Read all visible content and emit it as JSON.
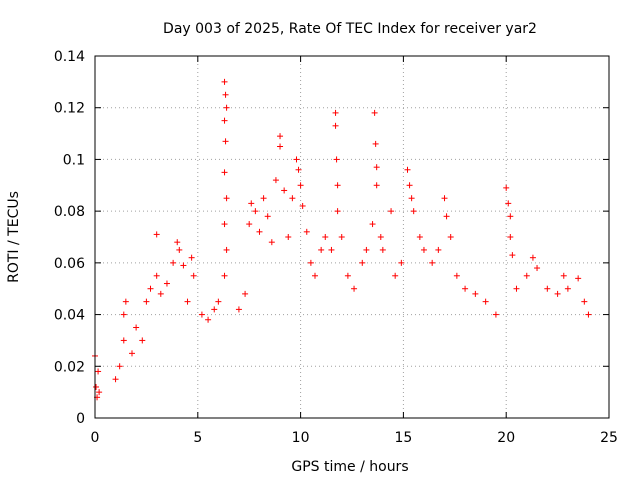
{
  "chart_data": {
    "type": "scatter",
    "title": "Day 003 of 2025, Rate Of TEC Index for receiver yar2",
    "xlabel": "GPS time / hours",
    "ylabel": "ROTI / TECUs",
    "xlim": [
      0,
      25
    ],
    "ylim": [
      0,
      0.14
    ],
    "xticks": [
      0,
      5,
      10,
      15,
      20,
      25
    ],
    "xtick_labels": [
      "0",
      "5",
      "10",
      "15",
      "20",
      "25"
    ],
    "yticks": [
      0,
      0.02,
      0.04,
      0.06,
      0.08,
      0.1,
      0.12,
      0.14
    ],
    "ytick_labels": [
      "0",
      "0.02",
      "0.04",
      "0.06",
      "0.08",
      "0.1",
      "0.12",
      "0.14"
    ],
    "grid": true,
    "marker": "plus",
    "color": "#ff0000",
    "series": [
      {
        "points": [
          [
            0.0,
            0.024
          ],
          [
            0.05,
            0.012
          ],
          [
            0.1,
            0.008
          ],
          [
            0.15,
            0.018
          ],
          [
            0.2,
            0.01
          ],
          [
            1.0,
            0.015
          ],
          [
            1.2,
            0.02
          ],
          [
            1.4,
            0.03
          ],
          [
            1.4,
            0.04
          ],
          [
            1.5,
            0.045
          ],
          [
            1.8,
            0.025
          ],
          [
            2.0,
            0.035
          ],
          [
            2.3,
            0.03
          ],
          [
            2.5,
            0.045
          ],
          [
            2.7,
            0.05
          ],
          [
            3.0,
            0.071
          ],
          [
            3.0,
            0.055
          ],
          [
            3.2,
            0.048
          ],
          [
            3.5,
            0.052
          ],
          [
            3.8,
            0.06
          ],
          [
            4.0,
            0.068
          ],
          [
            4.1,
            0.065
          ],
          [
            4.3,
            0.059
          ],
          [
            4.5,
            0.045
          ],
          [
            4.7,
            0.062
          ],
          [
            4.8,
            0.055
          ],
          [
            5.2,
            0.04
          ],
          [
            5.5,
            0.038
          ],
          [
            5.8,
            0.042
          ],
          [
            6.0,
            0.045
          ],
          [
            6.3,
            0.13
          ],
          [
            6.35,
            0.125
          ],
          [
            6.4,
            0.12
          ],
          [
            6.3,
            0.115
          ],
          [
            6.35,
            0.107
          ],
          [
            6.3,
            0.095
          ],
          [
            6.4,
            0.085
          ],
          [
            6.3,
            0.075
          ],
          [
            6.4,
            0.065
          ],
          [
            6.3,
            0.055
          ],
          [
            7.0,
            0.042
          ],
          [
            7.3,
            0.048
          ],
          [
            7.5,
            0.075
          ],
          [
            7.6,
            0.083
          ],
          [
            7.8,
            0.08
          ],
          [
            8.0,
            0.072
          ],
          [
            8.2,
            0.085
          ],
          [
            8.4,
            0.078
          ],
          [
            8.6,
            0.068
          ],
          [
            8.8,
            0.092
          ],
          [
            9.0,
            0.105
          ],
          [
            9.0,
            0.109
          ],
          [
            9.2,
            0.088
          ],
          [
            9.4,
            0.07
          ],
          [
            9.6,
            0.085
          ],
          [
            9.8,
            0.1
          ],
          [
            9.9,
            0.096
          ],
          [
            10.0,
            0.09
          ],
          [
            10.1,
            0.082
          ],
          [
            10.3,
            0.072
          ],
          [
            10.5,
            0.06
          ],
          [
            10.7,
            0.055
          ],
          [
            11.0,
            0.065
          ],
          [
            11.2,
            0.07
          ],
          [
            11.5,
            0.065
          ],
          [
            11.7,
            0.118
          ],
          [
            11.7,
            0.113
          ],
          [
            11.75,
            0.1
          ],
          [
            11.8,
            0.09
          ],
          [
            11.8,
            0.08
          ],
          [
            12.0,
            0.07
          ],
          [
            12.3,
            0.055
          ],
          [
            12.6,
            0.05
          ],
          [
            13.0,
            0.06
          ],
          [
            13.2,
            0.065
          ],
          [
            13.5,
            0.075
          ],
          [
            13.6,
            0.118
          ],
          [
            13.65,
            0.106
          ],
          [
            13.7,
            0.097
          ],
          [
            13.7,
            0.09
          ],
          [
            13.9,
            0.07
          ],
          [
            14.0,
            0.065
          ],
          [
            14.4,
            0.08
          ],
          [
            14.6,
            0.055
          ],
          [
            14.9,
            0.06
          ],
          [
            15.2,
            0.096
          ],
          [
            15.3,
            0.09
          ],
          [
            15.4,
            0.085
          ],
          [
            15.5,
            0.08
          ],
          [
            15.8,
            0.07
          ],
          [
            16.0,
            0.065
          ],
          [
            16.4,
            0.06
          ],
          [
            16.7,
            0.065
          ],
          [
            17.0,
            0.085
          ],
          [
            17.1,
            0.078
          ],
          [
            17.3,
            0.07
          ],
          [
            17.6,
            0.055
          ],
          [
            18.0,
            0.05
          ],
          [
            18.5,
            0.048
          ],
          [
            19.0,
            0.045
          ],
          [
            19.5,
            0.04
          ],
          [
            20.0,
            0.089
          ],
          [
            20.1,
            0.083
          ],
          [
            20.2,
            0.078
          ],
          [
            20.2,
            0.07
          ],
          [
            20.3,
            0.063
          ],
          [
            20.5,
            0.05
          ],
          [
            21.0,
            0.055
          ],
          [
            21.3,
            0.062
          ],
          [
            21.5,
            0.058
          ],
          [
            22.0,
            0.05
          ],
          [
            22.5,
            0.048
          ],
          [
            22.8,
            0.055
          ],
          [
            23.0,
            0.05
          ],
          [
            23.5,
            0.054
          ],
          [
            23.8,
            0.045
          ],
          [
            24.0,
            0.04
          ]
        ]
      }
    ]
  }
}
